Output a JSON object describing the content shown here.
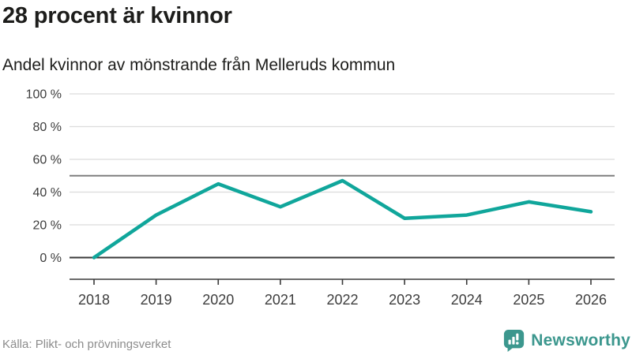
{
  "title": "28 procent är kvinnor",
  "subtitle": "Andel kvinnor av mönstrande från Melleruds kommun",
  "footer": {
    "source": "Källa: Plikt- och prövningsverket",
    "brand": "Newsworthy"
  },
  "colors": {
    "line": "#10a69b",
    "brand_teal": "#3c978e",
    "grid": "#dcdcdc",
    "reference_line": "#7f7f7f",
    "axis": "#3a3a3a",
    "tick_text": "#3d3d3d",
    "text_dark": "#1d1d1b",
    "muted_text": "#8c8c8c"
  },
  "chart_data": {
    "type": "line",
    "title": "28 procent är kvinnor",
    "subtitle": "Andel kvinnor av mönstrande från Melleruds kommun",
    "categories": [
      "2018",
      "2019",
      "2020",
      "2021",
      "2022",
      "2023",
      "2024",
      "2025",
      "2026"
    ],
    "series": [
      {
        "name": "Andel kvinnor av mönstrande",
        "values": [
          0,
          26,
          45,
          31,
          47,
          24,
          26,
          34,
          28
        ]
      }
    ],
    "ylim": [
      0,
      100
    ],
    "y_ticks": [
      0,
      20,
      40,
      60,
      80,
      100
    ],
    "y_tick_labels": [
      "0 %",
      "20 %",
      "40 %",
      "60 %",
      "80 %",
      "100 %"
    ],
    "reference_line": 50,
    "unit": "%",
    "grid": true,
    "legend": "none"
  }
}
